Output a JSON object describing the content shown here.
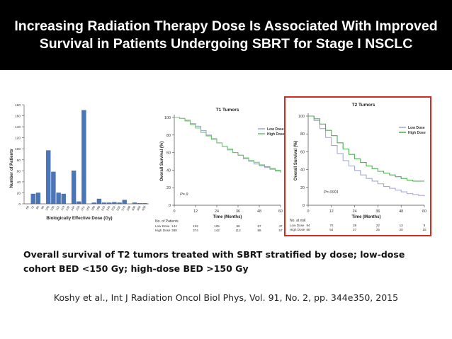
{
  "slide": {
    "title": "Increasing Radiation Therapy Dose Is Associated With Improved Survival in Patients Undergoing SBRT for Stage I NSCLC",
    "caption": "Overall survival of T2 tumors treated with SBRT stratified by dose; low-dose cohort BED <150 Gy; high-dose BED >150 Gy",
    "citation": "Koshy et al., Int J Radiation Oncol Biol Phys, Vol. 91, No. 2, pp. 344e350, 2015",
    "highlight_color": "#d42a1f"
  },
  "chart_data": [
    {
      "type": "bar",
      "title": "",
      "xlabel": "Biologically Effective Dose (Gy)",
      "ylabel": "Number of Patients",
      "ylim": [
        0,
        180
      ],
      "yticks": [
        0,
        20,
        40,
        60,
        80,
        100,
        120,
        140,
        160,
        180
      ],
      "categories": [
        "60",
        "72",
        "84",
        "96",
        "100",
        "106",
        "112",
        "119",
        "132",
        "144",
        "150",
        "151",
        "162",
        "180",
        "190",
        "216",
        "240",
        "252",
        "262",
        "270",
        "288",
        "300",
        "360",
        "400"
      ],
      "values": [
        0,
        18,
        20,
        0,
        97,
        58,
        20,
        18,
        0,
        60,
        4,
        170,
        0,
        2,
        9,
        2,
        2,
        3,
        2,
        7,
        0,
        2,
        1,
        1
      ],
      "bar_color": "#4a76b8",
      "grid": false
    },
    {
      "type": "line",
      "title": "T1 Tumors",
      "xlabel": "Time (Months)",
      "ylabel": "Overall Survival (%)",
      "xlim": [
        0,
        60
      ],
      "ylim": [
        0,
        100
      ],
      "xticks": [
        0,
        12,
        24,
        36,
        48,
        60
      ],
      "yticks": [
        0,
        20,
        40,
        60,
        80,
        100
      ],
      "annotation": "P=.9",
      "legend_position": "top-right",
      "series": [
        {
          "name": "Low Dose",
          "color": "#a3a8d4",
          "x": [
            0,
            3,
            6,
            9,
            12,
            15,
            18,
            21,
            24,
            27,
            30,
            33,
            36,
            39,
            42,
            45,
            48,
            51,
            54,
            57,
            60
          ],
          "y": [
            100,
            99,
            97,
            93,
            90,
            85,
            80,
            76,
            71,
            67,
            63,
            60,
            57,
            53,
            50,
            47,
            45,
            43,
            41,
            39,
            37
          ]
        },
        {
          "name": "High Dose",
          "color": "#6cc46a",
          "x": [
            0,
            3,
            6,
            9,
            12,
            15,
            18,
            21,
            24,
            27,
            30,
            33,
            36,
            39,
            42,
            45,
            48,
            51,
            54,
            57,
            60
          ],
          "y": [
            100,
            99,
            96,
            92,
            88,
            83,
            79,
            75,
            71,
            67,
            64,
            60,
            57,
            54,
            51,
            49,
            46,
            44,
            42,
            40,
            38
          ]
        }
      ],
      "risk_table": {
        "title": "No. of Patients",
        "rows": [
          {
            "label": "Low Dose",
            "values": [
              "144",
              "132",
              "105",
              "86",
              "67",
              "47"
            ]
          },
          {
            "label": "High Dose",
            "values": [
              "388",
              "374",
              "142",
              "112",
              "86",
              "57"
            ]
          }
        ]
      }
    },
    {
      "type": "line",
      "title": "T2 Tumors",
      "xlabel": "Time (Months)",
      "ylabel": "Overall Survival (%)",
      "xlim": [
        0,
        60
      ],
      "ylim": [
        0,
        100
      ],
      "xticks": [
        0,
        12,
        24,
        36,
        48,
        60
      ],
      "yticks": [
        0,
        20,
        40,
        60,
        80,
        100
      ],
      "annotation": "P=.0001",
      "legend_position": "top-right",
      "series": [
        {
          "name": "Low Dose",
          "color": "#a3a8d4",
          "x": [
            0,
            3,
            6,
            9,
            12,
            15,
            18,
            21,
            24,
            27,
            30,
            33,
            36,
            39,
            42,
            45,
            48,
            51,
            54,
            57,
            60
          ],
          "y": [
            100,
            95,
            86,
            76,
            67,
            58,
            50,
            44,
            39,
            34,
            30,
            27,
            24,
            21,
            19,
            17,
            15,
            13,
            12,
            11,
            10
          ]
        },
        {
          "name": "High Dose",
          "color": "#4caf50",
          "x": [
            0,
            3,
            6,
            9,
            12,
            15,
            18,
            21,
            24,
            27,
            30,
            33,
            36,
            39,
            42,
            45,
            48,
            51,
            54,
            57,
            60
          ],
          "y": [
            100,
            97,
            91,
            84,
            78,
            70,
            63,
            57,
            52,
            48,
            44,
            41,
            38,
            36,
            34,
            32,
            30,
            28,
            27,
            27,
            27
          ]
        }
      ],
      "risk_table": {
        "title": "No. at risk",
        "rows": [
          {
            "label": "Low Dose",
            "values": [
              "94",
              "70",
              "38",
              "22",
              "13",
              "8"
            ]
          },
          {
            "label": "High Dose",
            "values": [
              "68",
              "54",
              "37",
              "25",
              "20",
              "15"
            ]
          }
        ]
      }
    }
  ]
}
